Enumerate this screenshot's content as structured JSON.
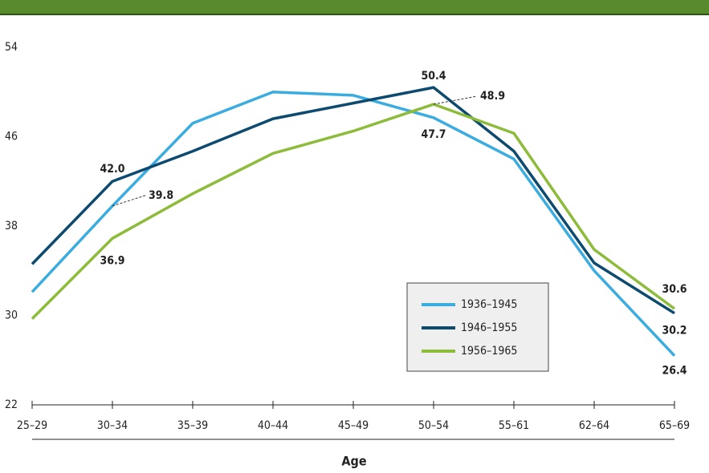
{
  "chart_data": {
    "type": "line",
    "x_label": "Age",
    "categories": [
      "25–29",
      "30–34",
      "35–39",
      "40–44",
      "45–49",
      "50–54",
      "55–61",
      "62–64",
      "65–69"
    ],
    "series": [
      {
        "name": "1936–1945",
        "color": "#3aace0",
        "values": [
          32.1,
          39.8,
          47.2,
          50.0,
          49.7,
          47.7,
          44.0,
          34.0,
          26.4
        ],
        "value_labels": [
          null,
          "39.8",
          null,
          null,
          null,
          "47.7",
          null,
          null,
          "26.4"
        ]
      },
      {
        "name": "1946–1955",
        "color": "#0d4a70",
        "values": [
          34.6,
          42.0,
          44.7,
          47.6,
          49.0,
          50.4,
          44.7,
          34.7,
          30.2
        ],
        "value_labels": [
          null,
          "42.0",
          null,
          null,
          null,
          "50.4",
          null,
          null,
          "30.2"
        ]
      },
      {
        "name": "1956–1965",
        "color": "#8dbb3a",
        "values": [
          29.7,
          36.9,
          40.9,
          44.5,
          46.5,
          48.9,
          46.3,
          35.9,
          30.6
        ],
        "value_labels": [
          null,
          "36.9",
          null,
          null,
          null,
          "48.9",
          null,
          null,
          "30.6"
        ]
      }
    ],
    "ylim": [
      22,
      55
    ],
    "yticks": [
      22,
      30,
      38,
      46,
      54
    ]
  }
}
